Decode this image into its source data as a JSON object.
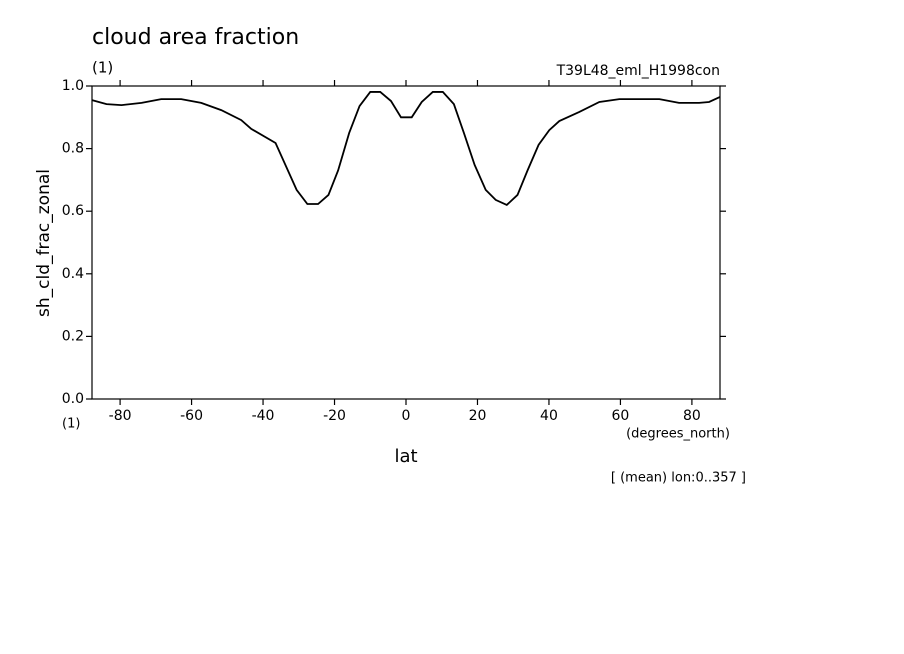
{
  "chart_data": {
    "type": "line",
    "title": "cloud area fraction",
    "title_units": "(1)",
    "dataset": "T39L48_eml_H1998con",
    "y_label": "sh_cld_frac_zonal",
    "y_units": "(1)",
    "x_label": "lat",
    "x_units": "(degrees_north)",
    "footnote": "[ (mean) lon:0..357 ]",
    "color": "#000000",
    "x": [
      -87.86,
      -83.8,
      -79.6,
      -74,
      -68.5,
      -62.9,
      -57.3,
      -51.7,
      -46.1,
      -43.3,
      -36.5,
      -30.6,
      -27.6,
      -24.6,
      -21.7,
      -19,
      -15.9,
      -13,
      -10,
      -7.2,
      -4.2,
      -1.4,
      1.6,
      4.4,
      7.5,
      10.3,
      13.4,
      16.2,
      19.2,
      22.3,
      25.1,
      28.2,
      31.2,
      34,
      37.1,
      40.1,
      42.9,
      48.5,
      54.1,
      59.7,
      65.3,
      70.9,
      76.4,
      82,
      84.8,
      87.86
    ],
    "values": [
      0.955,
      0.942,
      0.939,
      0.946,
      0.958,
      0.958,
      0.946,
      0.923,
      0.891,
      0.863,
      0.818,
      0.668,
      0.623,
      0.623,
      0.652,
      0.73,
      0.85,
      0.936,
      0.981,
      0.981,
      0.952,
      0.9,
      0.9,
      0.949,
      0.981,
      0.981,
      0.942,
      0.85,
      0.748,
      0.668,
      0.636,
      0.62,
      0.652,
      0.73,
      0.812,
      0.859,
      0.888,
      0.917,
      0.949,
      0.958,
      0.958,
      0.958,
      0.946,
      0.946,
      0.949,
      0.965
    ],
    "xlim": [
      -87.86,
      87.86
    ],
    "xticks": [
      -80,
      -60,
      -40,
      -20,
      0,
      20,
      40,
      60,
      80
    ],
    "ylim": [
      0,
      1
    ],
    "yticks": [
      {
        "value": 0,
        "label": "0.0"
      },
      0.2,
      0.4,
      0.6,
      0.8,
      {
        "value": 1,
        "label": "1.0"
      }
    ]
  }
}
